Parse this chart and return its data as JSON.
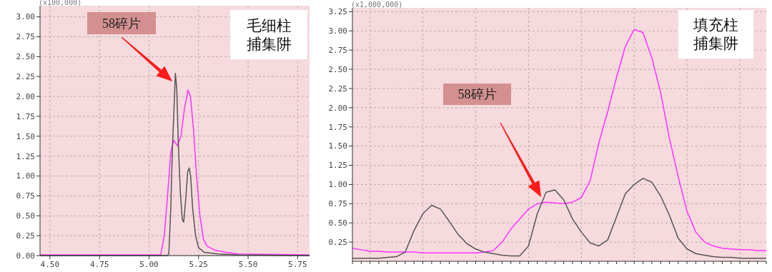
{
  "chart_data": [
    {
      "type": "line",
      "ylabel": "(x100,000)",
      "xlim": [
        4.45,
        5.81
      ],
      "ylim": [
        0,
        3.14
      ],
      "xticks": [
        {
          "value": 4.5,
          "label": "4.50"
        },
        {
          "value": 4.75,
          "label": "4.75"
        },
        {
          "value": 5,
          "label": "5.00"
        },
        {
          "value": 5.25,
          "label": "5.25"
        },
        {
          "value": 5.5,
          "label": "5.50"
        },
        {
          "value": 5.75,
          "label": "5.75"
        }
      ],
      "yticks": [
        {
          "value": 0,
          "label": "0.00"
        },
        {
          "value": 0.25,
          "label": "0.25"
        },
        {
          "value": 0.5,
          "label": "0.50"
        },
        {
          "value": 0.75,
          "label": "0.75"
        },
        {
          "value": 1,
          "label": "1.00"
        },
        {
          "value": 1.25,
          "label": "1.25"
        },
        {
          "value": 1.5,
          "label": "1.50"
        },
        {
          "value": 1.75,
          "label": "1.75"
        },
        {
          "value": 2,
          "label": "2.00"
        },
        {
          "value": 2.25,
          "label": "2.25"
        },
        {
          "value": 2.5,
          "label": "2.50"
        },
        {
          "value": 2.75,
          "label": "2.75"
        },
        {
          "value": 3,
          "label": "3.00"
        }
      ],
      "grid": true,
      "series": [
        {
          "color": "#ff33ff",
          "x": [
            4.45,
            5.059,
            5.077,
            5.095,
            5.11,
            5.125,
            5.143,
            5.161,
            5.179,
            5.197,
            5.209,
            5.224,
            5.24,
            5.257,
            5.275,
            5.293,
            5.33,
            5.39,
            5.45,
            5.81
          ],
          "values": [
            0.01,
            0.01,
            0.25,
            0.8,
            1.3,
            1.45,
            1.38,
            1.5,
            1.85,
            2.08,
            2.0,
            1.6,
            1.0,
            0.5,
            0.2,
            0.12,
            0.07,
            0.04,
            0.02,
            0.01
          ]
        },
        {
          "color": "#555555",
          "x": [
            4.45,
            5.09,
            5.1,
            5.11,
            5.118,
            5.127,
            5.133,
            5.14,
            5.148,
            5.158,
            5.168,
            5.175,
            5.185,
            5.195,
            5.203,
            5.21,
            5.22,
            5.235,
            5.25,
            5.28,
            5.35,
            5.45,
            5.81
          ],
          "values": [
            0,
            0,
            0.02,
            0.6,
            1.35,
            1.9,
            2.29,
            2.1,
            1.4,
            0.8,
            0.45,
            0.42,
            0.7,
            1.05,
            1.1,
            1.0,
            0.6,
            0.25,
            0.1,
            0.04,
            0.02,
            0.01,
            0
          ]
        }
      ],
      "annotations": [
        "58碎片",
        "毛细柱捕集阱"
      ]
    },
    {
      "type": "line",
      "ylabel": "(x1,000,000)",
      "ylim": [
        0,
        3.3
      ],
      "categories": [
        null,
        null,
        null,
        null,
        null,
        null,
        null,
        null,
        null,
        null,
        null,
        null,
        null,
        null,
        null,
        null,
        null,
        null,
        null,
        null,
        null,
        null,
        null,
        null,
        null,
        null,
        null,
        null,
        null,
        null,
        null,
        null,
        null,
        null,
        null,
        null,
        null,
        null,
        null,
        null,
        null,
        null,
        null,
        null,
        null,
        null,
        null,
        null
      ],
      "yticks": [
        {
          "value": 0.25,
          "label": "0.25"
        },
        {
          "value": 0.5,
          "label": "0.50"
        },
        {
          "value": 0.75,
          "label": "0.75"
        },
        {
          "value": 1,
          "label": "1.00"
        },
        {
          "value": 1.25,
          "label": "1.25"
        },
        {
          "value": 1.5,
          "label": "1.50"
        },
        {
          "value": 1.75,
          "label": "1.75"
        },
        {
          "value": 2,
          "label": "2.00"
        },
        {
          "value": 2.25,
          "label": "2.25"
        },
        {
          "value": 2.5,
          "label": "2.50"
        },
        {
          "value": 2.75,
          "label": "2.75"
        },
        {
          "value": 3,
          "label": "3.00"
        },
        {
          "value": 3.25,
          "label": "3.25"
        }
      ],
      "grid": true,
      "series": [
        {
          "color": "#ff33ff",
          "values": [
            0.17,
            0.15,
            0.13,
            0.13,
            0.12,
            0.12,
            0.12,
            0.12,
            0.11,
            0.11,
            0.11,
            0.11,
            0.11,
            0.11,
            0.11,
            0.12,
            0.14,
            0.25,
            0.42,
            0.55,
            0.68,
            0.75,
            0.77,
            0.76,
            0.75,
            0.77,
            0.83,
            1.05,
            1.55,
            1.95,
            2.4,
            2.8,
            3.02,
            2.98,
            2.65,
            2.2,
            1.6,
            1.1,
            0.65,
            0.38,
            0.25,
            0.2,
            0.17,
            0.16,
            0.15,
            0.15,
            0.14,
            0.14
          ]
        },
        {
          "color": "#555555",
          "values": [
            0.04,
            0.04,
            0.04,
            0.04,
            0.05,
            0.06,
            0.12,
            0.4,
            0.62,
            0.73,
            0.68,
            0.52,
            0.35,
            0.23,
            0.16,
            0.12,
            0.1,
            0.08,
            0.07,
            0.07,
            0.2,
            0.62,
            0.9,
            0.93,
            0.8,
            0.55,
            0.38,
            0.24,
            0.2,
            0.28,
            0.58,
            0.88,
            1.0,
            1.08,
            1.03,
            0.85,
            0.6,
            0.3,
            0.16,
            0.1,
            0.08,
            0.06,
            0.05,
            0.05,
            0.04,
            0.04,
            0.04,
            0.04
          ]
        }
      ],
      "annotations": [
        "58碎片",
        "填充柱捕集阱"
      ]
    }
  ]
}
